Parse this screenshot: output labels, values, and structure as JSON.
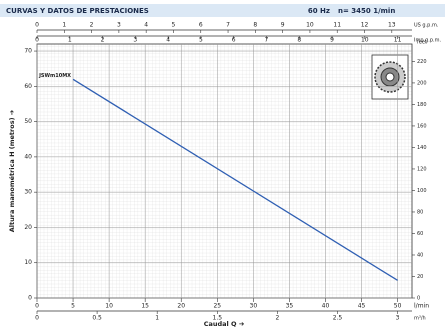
{
  "chart_data": {
    "type": "line",
    "title": "CURVAS Y DATOS DE PRESTACIONES",
    "frequency": "60 Hz",
    "speed": "n= 3450 1/min",
    "x_label": "Caudal Q ➔",
    "y_label": "Altura manométrica H (metros) ➔",
    "x": [
      5,
      50
    ],
    "series": [
      {
        "name": "JSWm10MX",
        "color": "#2f5fb3",
        "values": [
          62,
          5
        ]
      }
    ],
    "xlim": [
      0,
      52
    ],
    "xticks": [
      0,
      5,
      10,
      15,
      20,
      25,
      30,
      35,
      40,
      45,
      50
    ],
    "x_unit": "l/min",
    "ylim": [
      0,
      72
    ],
    "yticks": [
      0,
      10,
      20,
      30,
      40,
      50,
      60,
      70
    ],
    "grid": true,
    "us_gpm_axis": {
      "label": "US g.p.m.",
      "lim": [
        0,
        13.74
      ],
      "ticks": [
        0,
        1,
        2,
        3,
        4,
        5,
        6,
        7,
        8,
        9,
        10,
        11,
        12,
        13
      ]
    },
    "imp_gpm_axis": {
      "label": "Imp g.p.m.",
      "lim": [
        0,
        11.44
      ],
      "ticks": [
        0,
        1,
        2,
        3,
        4,
        5,
        6,
        7,
        8,
        9,
        10,
        11
      ]
    },
    "m3h_axis": {
      "label": "m³/h",
      "lim": [
        0,
        3.12
      ],
      "ticks": [
        0,
        0.5,
        1,
        1.5,
        2,
        2.5,
        3
      ]
    },
    "feet_axis": {
      "label": "feet",
      "lim": [
        0,
        236.2
      ],
      "ticks": [
        0,
        20,
        40,
        60,
        80,
        100,
        120,
        140,
        160,
        180,
        200,
        220
      ]
    }
  }
}
